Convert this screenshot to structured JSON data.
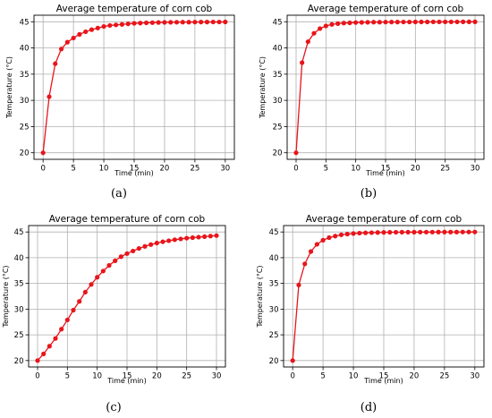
{
  "chart_data": [
    {
      "type": "line",
      "panel_label": "(a)",
      "title": "Average temperature of corn cob",
      "xlabel": "Time (min)",
      "ylabel": "Temperature (°C)",
      "xlim": [
        0,
        30
      ],
      "ylim": [
        20,
        45
      ],
      "x_ticks": [
        0,
        5,
        10,
        15,
        20,
        25,
        30
      ],
      "y_ticks": [
        20,
        25,
        30,
        35,
        40,
        45
      ],
      "grid": true,
      "color": "#e8151b",
      "x": [
        0,
        1,
        2,
        3,
        4,
        5,
        6,
        7,
        8,
        9,
        10,
        11,
        12,
        13,
        14,
        15,
        16,
        17,
        18,
        19,
        20,
        21,
        22,
        23,
        24,
        25,
        26,
        27,
        28,
        29,
        30
      ],
      "y": [
        20,
        30.7,
        37,
        39.8,
        41.1,
        41.9,
        42.6,
        43.1,
        43.5,
        43.8,
        44.1,
        44.3,
        44.4,
        44.5,
        44.6,
        44.7,
        44.75,
        44.8,
        44.83,
        44.86,
        44.88,
        44.9,
        44.91,
        44.92,
        44.93,
        44.94,
        44.95,
        44.95,
        44.96,
        44.96,
        44.97
      ]
    },
    {
      "type": "line",
      "panel_label": "(b)",
      "title": "Average temperature of corn cob",
      "xlabel": "Time (min)",
      "ylabel": "Temperature (°C)",
      "xlim": [
        0,
        30
      ],
      "ylim": [
        20,
        45
      ],
      "x_ticks": [
        0,
        5,
        10,
        15,
        20,
        25,
        30
      ],
      "y_ticks": [
        20,
        25,
        30,
        35,
        40,
        45
      ],
      "grid": true,
      "color": "#e8151b",
      "x": [
        0,
        1,
        2,
        3,
        4,
        5,
        6,
        7,
        8,
        9,
        10,
        11,
        12,
        13,
        14,
        15,
        16,
        17,
        18,
        19,
        20,
        21,
        22,
        23,
        24,
        25,
        26,
        27,
        28,
        29,
        30
      ],
      "y": [
        20,
        37.2,
        41.2,
        42.8,
        43.7,
        44.2,
        44.5,
        44.65,
        44.75,
        44.8,
        44.85,
        44.88,
        44.9,
        44.92,
        44.93,
        44.94,
        44.95,
        44.95,
        44.96,
        44.96,
        44.97,
        44.97,
        44.97,
        44.98,
        44.98,
        44.98,
        44.98,
        44.98,
        44.99,
        44.99,
        44.99
      ]
    },
    {
      "type": "line",
      "panel_label": "(c)",
      "title": "Average temperature of corn cob",
      "xlabel": "Time (min)",
      "ylabel": "Temperature (°C)",
      "xlim": [
        0,
        30
      ],
      "ylim": [
        20,
        45
      ],
      "x_ticks": [
        0,
        5,
        10,
        15,
        20,
        25,
        30
      ],
      "y_ticks": [
        20,
        25,
        30,
        35,
        40,
        45
      ],
      "grid": true,
      "color": "#e8151b",
      "x": [
        0,
        1,
        2,
        3,
        4,
        5,
        6,
        7,
        8,
        9,
        10,
        11,
        12,
        13,
        14,
        15,
        16,
        17,
        18,
        19,
        20,
        21,
        22,
        23,
        24,
        25,
        26,
        27,
        28,
        29,
        30
      ],
      "y": [
        20,
        21.3,
        22.8,
        24.3,
        26.1,
        27.9,
        29.8,
        31.5,
        33.3,
        34.8,
        36.2,
        37.4,
        38.5,
        39.4,
        40.2,
        40.8,
        41.3,
        41.8,
        42.2,
        42.55,
        42.85,
        43.1,
        43.3,
        43.5,
        43.65,
        43.8,
        43.9,
        44.0,
        44.1,
        44.2,
        44.3
      ]
    },
    {
      "type": "line",
      "panel_label": "(d)",
      "title": "Average temperature of corn cob",
      "xlabel": "Time (min)",
      "ylabel": "Temperature (°C)",
      "xlim": [
        0,
        30
      ],
      "ylim": [
        20,
        45
      ],
      "x_ticks": [
        0,
        5,
        10,
        15,
        20,
        25,
        30
      ],
      "y_ticks": [
        20,
        25,
        30,
        35,
        40,
        45
      ],
      "grid": true,
      "color": "#e8151b",
      "x": [
        0,
        1,
        2,
        3,
        4,
        5,
        6,
        7,
        8,
        9,
        10,
        11,
        12,
        13,
        14,
        15,
        16,
        17,
        18,
        19,
        20,
        21,
        22,
        23,
        24,
        25,
        26,
        27,
        28,
        29,
        30
      ],
      "y": [
        20,
        34.7,
        38.8,
        41.2,
        42.6,
        43.4,
        43.9,
        44.2,
        44.45,
        44.6,
        44.7,
        44.78,
        44.83,
        44.87,
        44.9,
        44.92,
        44.94,
        44.95,
        44.96,
        44.97,
        44.97,
        44.98,
        44.98,
        44.98,
        44.99,
        44.99,
        44.99,
        44.99,
        45.0,
        45.0,
        45.0
      ]
    }
  ]
}
